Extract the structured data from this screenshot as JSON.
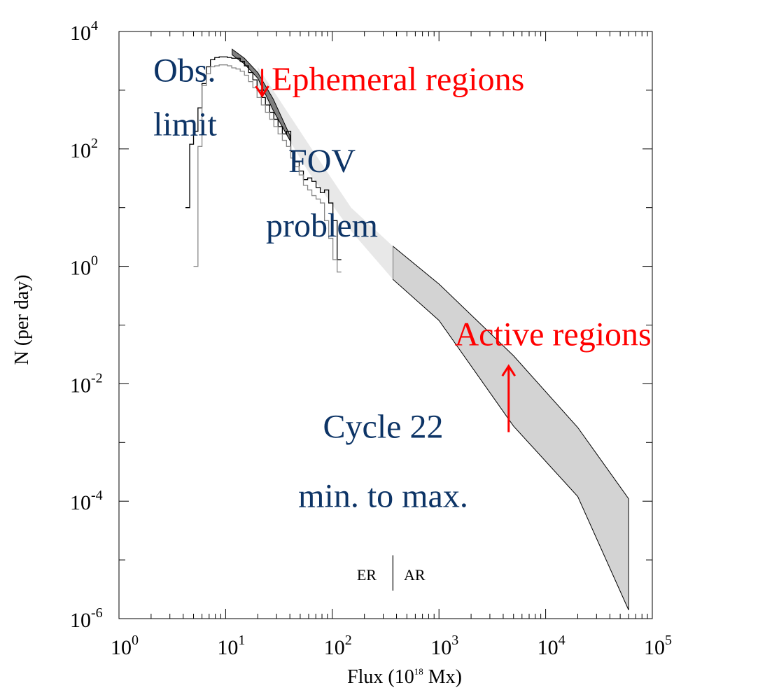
{
  "chart_data": {
    "type": "area",
    "xlabel_main": "Flux (10",
    "xlabel_exp": "18",
    "xlabel_tail": " Mx)",
    "ylabel": "N (per day)",
    "xscale": "log",
    "yscale": "log",
    "xlim": [
      1,
      100000
    ],
    "ylim": [
      1e-06,
      10000
    ],
    "x_ticks": [
      {
        "base": "10",
        "exp": "0",
        "value": 1
      },
      {
        "base": "10",
        "exp": "1",
        "value": 10
      },
      {
        "base": "10",
        "exp": "2",
        "value": 100
      },
      {
        "base": "10",
        "exp": "3",
        "value": 1000
      },
      {
        "base": "10",
        "exp": "4",
        "value": 10000
      },
      {
        "base": "10",
        "exp": "5",
        "value": 100000
      }
    ],
    "y_ticks": [
      {
        "base": "10",
        "exp": "4",
        "value": 10000
      },
      {
        "base": "10",
        "exp": "2",
        "value": 100
      },
      {
        "base": "10",
        "exp": "0",
        "value": 1
      },
      {
        "base": "10",
        "exp": "-2",
        "value": 0.01
      },
      {
        "base": "10",
        "exp": "-4",
        "value": 0.0001
      },
      {
        "base": "10",
        "exp": "-6",
        "value": 1e-06
      }
    ],
    "bands": [
      {
        "id": "ar-band",
        "color": "#d3d3d3",
        "upper": [
          [
            370,
            2.2
          ],
          [
            1000,
            0.5
          ],
          [
            5000,
            0.03
          ],
          [
            20000,
            0.0018
          ],
          [
            60000,
            0.00011
          ]
        ],
        "lower": [
          [
            370,
            0.6
          ],
          [
            1000,
            0.12
          ],
          [
            5000,
            0.0019
          ],
          [
            20000,
            0.00012
          ],
          [
            60000,
            1.4e-06
          ]
        ]
      },
      {
        "id": "er-extrapolation-band",
        "color": "#e8e8e8",
        "upper": [
          [
            20,
            2500
          ],
          [
            60,
            120
          ],
          [
            150,
            10
          ],
          [
            370,
            2.2
          ]
        ],
        "lower": [
          [
            20,
            1100
          ],
          [
            60,
            40
          ],
          [
            150,
            4
          ],
          [
            370,
            0.6
          ]
        ]
      },
      {
        "id": "er-measured-band",
        "color": "#808080",
        "upper": [
          [
            11.5,
            5000
          ],
          [
            15,
            3500
          ],
          [
            20,
            2000
          ],
          [
            28,
            700
          ],
          [
            40,
            170
          ]
        ],
        "lower": [
          [
            11.5,
            4000
          ],
          [
            15,
            2800
          ],
          [
            20,
            1600
          ],
          [
            28,
            450
          ],
          [
            40,
            140
          ]
        ]
      }
    ],
    "histograms": [
      {
        "id": "histogram-dark",
        "color": "#000000",
        "steps": [
          [
            4.2,
            10
          ],
          [
            4.6,
            120
          ],
          [
            5.0,
            200
          ],
          [
            5.5,
            500
          ],
          [
            6.0,
            1300
          ],
          [
            6.6,
            2500
          ],
          [
            7.2,
            3300
          ],
          [
            7.9,
            3600
          ],
          [
            8.7,
            3700
          ],
          [
            9.5,
            3700
          ],
          [
            10.4,
            3600
          ],
          [
            11.4,
            3500
          ],
          [
            12.5,
            3500
          ],
          [
            13.7,
            3100
          ],
          [
            15.0,
            2600
          ],
          [
            16.4,
            2000
          ],
          [
            18.0,
            1500
          ],
          [
            19.7,
            1000
          ],
          [
            21.6,
            750
          ],
          [
            23.6,
            560
          ],
          [
            25.9,
            420
          ],
          [
            28.3,
            320
          ],
          [
            31.0,
            240
          ],
          [
            34.0,
            180
          ],
          [
            37.2,
            200
          ],
          [
            40.8,
            90
          ],
          [
            44.7,
            60
          ],
          [
            48.9,
            42
          ],
          [
            53.6,
            30
          ],
          [
            58.7,
            32
          ],
          [
            64.3,
            28
          ],
          [
            70.4,
            22
          ],
          [
            77.1,
            18
          ],
          [
            84.5,
            20
          ],
          [
            92.5,
            12
          ],
          [
            101.3,
            6
          ],
          [
            111.0,
            1.3
          ],
          [
            121.5,
            1.3
          ]
        ]
      },
      {
        "id": "histogram-light",
        "color": "#888888",
        "steps": [
          [
            5.0,
            1
          ],
          [
            5.5,
            110
          ],
          [
            6.0,
            1200
          ],
          [
            6.6,
            1900
          ],
          [
            7.2,
            2500
          ],
          [
            7.9,
            2600
          ],
          [
            8.7,
            2700
          ],
          [
            9.5,
            2700
          ],
          [
            10.4,
            2600
          ],
          [
            11.4,
            2400
          ],
          [
            12.5,
            2300
          ],
          [
            13.7,
            2100
          ],
          [
            15.0,
            1800
          ],
          [
            16.4,
            1400
          ],
          [
            18.0,
            1100
          ],
          [
            19.7,
            750
          ],
          [
            21.6,
            560
          ],
          [
            23.6,
            420
          ],
          [
            25.9,
            320
          ],
          [
            28.3,
            240
          ],
          [
            31.0,
            180
          ],
          [
            34.0,
            140
          ],
          [
            37.2,
            110
          ],
          [
            40.8,
            70
          ],
          [
            44.7,
            50
          ],
          [
            48.9,
            36
          ],
          [
            53.6,
            24
          ],
          [
            58.7,
            20
          ],
          [
            64.3,
            16
          ],
          [
            70.4,
            14
          ],
          [
            77.1,
            12
          ],
          [
            84.5,
            6
          ],
          [
            92.5,
            3
          ],
          [
            101.3,
            1.3
          ],
          [
            111.0,
            0.8
          ],
          [
            121.5,
            0.8
          ]
        ]
      }
    ],
    "divider": {
      "value": 370,
      "ymin": 3e-06,
      "ymax": 1.2e-05
    },
    "annotations": [
      {
        "id": "obs-limit-line1",
        "text": "Obs.",
        "x": 2.1,
        "y": 1400,
        "color": "blue"
      },
      {
        "id": "obs-limit-line2",
        "text": "limit",
        "x": 2.1,
        "y": 170,
        "color": "blue"
      },
      {
        "id": "fov-line1",
        "text": "FOV",
        "x": 80,
        "y": 40,
        "color": "blue"
      },
      {
        "id": "fov-line2",
        "text": "problem",
        "x": 80,
        "y": 3.2,
        "color": "blue"
      },
      {
        "id": "cycle-line1",
        "text": "Cycle 22",
        "x": 300,
        "y": 0.0012,
        "color": "blue"
      },
      {
        "id": "cycle-line2",
        "text": "min. to max.",
        "x": 300,
        "y": 8e-05,
        "color": "blue"
      },
      {
        "id": "er-label",
        "text": "Ephemeral regions",
        "x": 27,
        "y": 1000,
        "color": "red"
      },
      {
        "id": "ar-label",
        "text": "Active regions",
        "x": 1400,
        "y": 0.045,
        "color": "red"
      },
      {
        "id": "er-divider-label",
        "text": "ER",
        "x": 210,
        "y": 4.5e-06,
        "color": "black"
      },
      {
        "id": "ar-divider-label",
        "text": "AR",
        "x": 590,
        "y": 4.5e-06,
        "color": "black"
      }
    ],
    "arrows": [
      {
        "id": "er-arrow",
        "from": [
          22,
          2300
        ],
        "to": [
          22,
          800
        ],
        "color": "red"
      },
      {
        "id": "ar-arrow",
        "from": [
          4500,
          0.0015
        ],
        "to": [
          4500,
          0.02
        ],
        "color": "red"
      }
    ],
    "colors": {
      "blue_text": "#0d3466",
      "red_text": "#ff0000"
    }
  }
}
